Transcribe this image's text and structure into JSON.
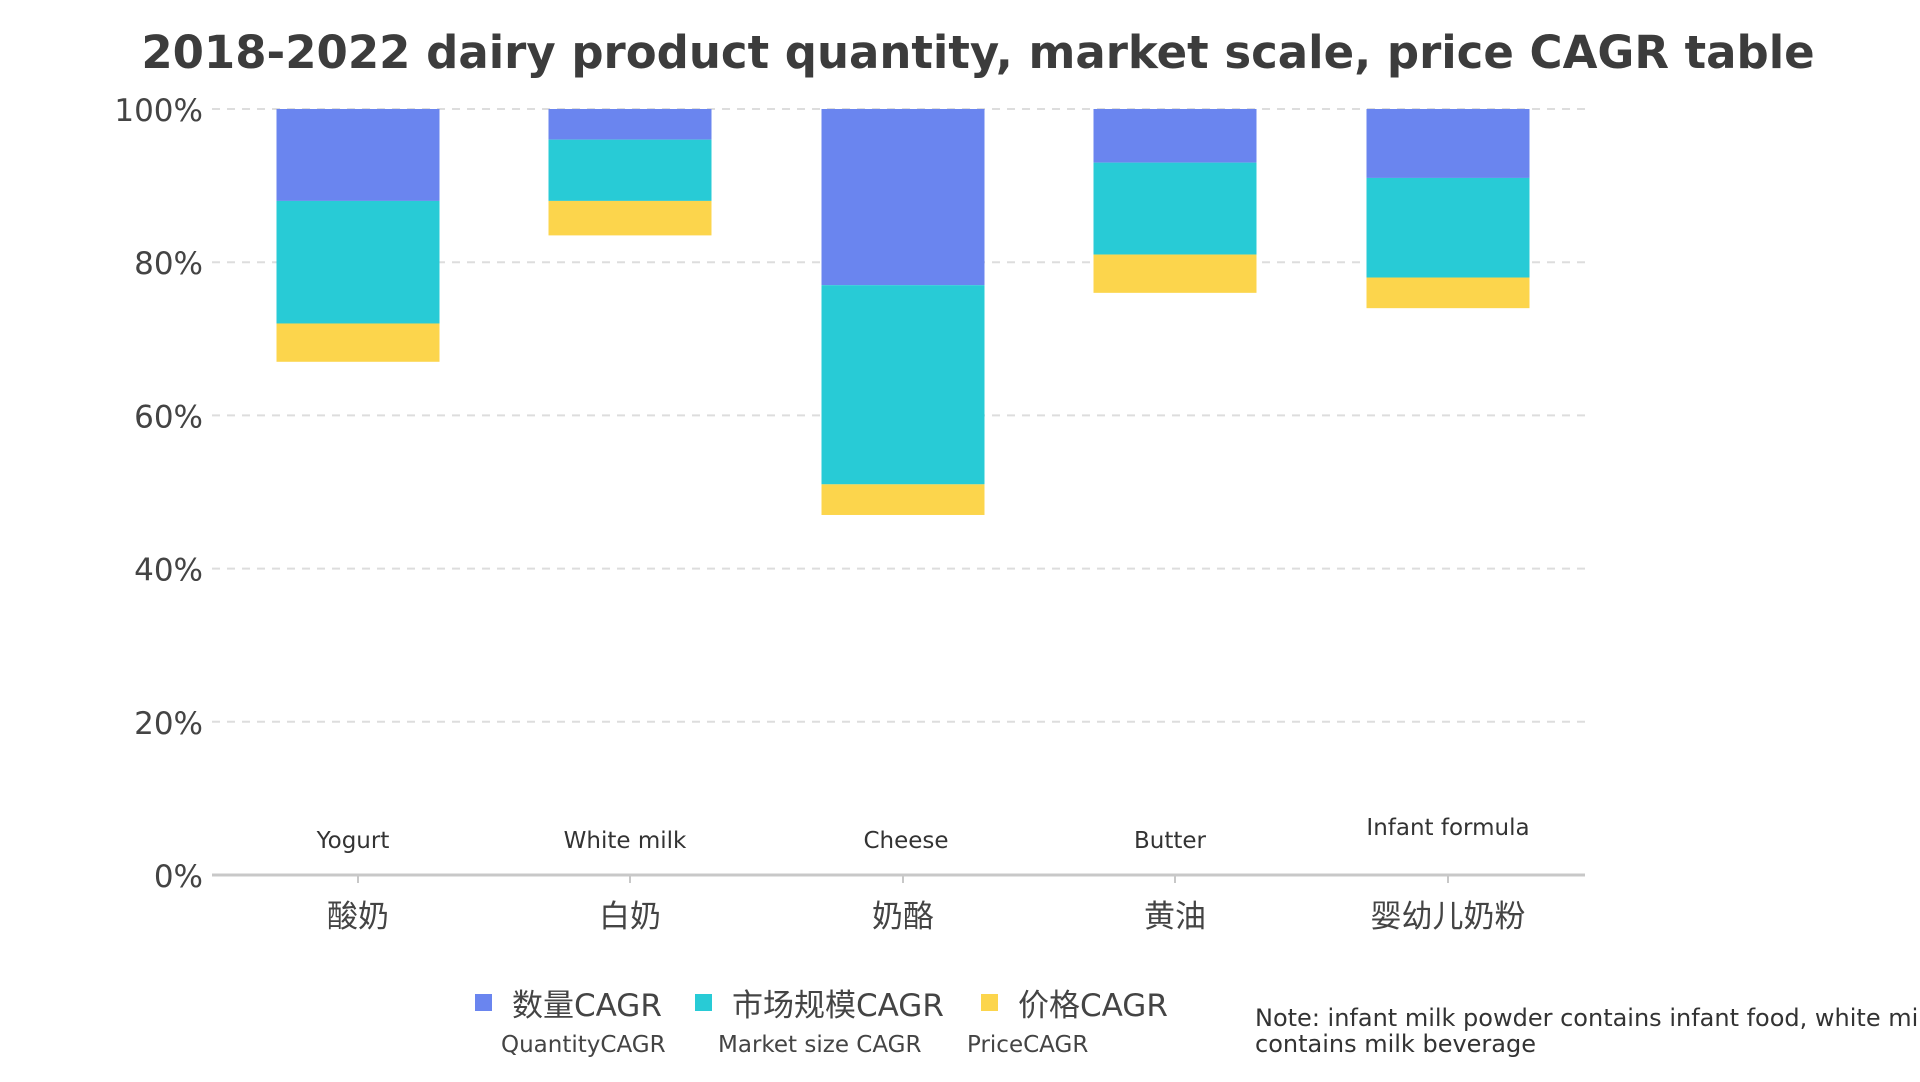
{
  "title": "2018-2022 dairy product quantity, market scale, price CAGR table",
  "legend": [
    {
      "label": "数量CAGR",
      "sublabel": "QuantityCAGR",
      "color": "#6a85ef"
    },
    {
      "label": "市场规模CAGR",
      "sublabel": "Market size CAGR",
      "color": "#28cbd6"
    },
    {
      "label": "价格CAGR",
      "sublabel": "PriceCAGR",
      "color": "#fcd54c"
    }
  ],
  "note": {
    "line1": "Note: infant milk powder contains infant food, white milk",
    "line2": "contains milk beverage"
  },
  "chart_data": {
    "type": "bar",
    "stacked": true,
    "categories": [
      "酸奶",
      "白奶",
      "奶酪",
      "黄油",
      "婴幼儿奶粉"
    ],
    "category_sublabels": [
      "Yogurt",
      "White milk",
      "Cheese",
      "Butter",
      "Infant formula"
    ],
    "series": [
      {
        "name": "数量CAGR",
        "color": "#6a85ef",
        "from": [
          88,
          96,
          77,
          93,
          91
        ],
        "to": [
          100,
          100,
          100,
          100,
          100
        ]
      },
      {
        "name": "市场规模CAGR",
        "color": "#28cbd6",
        "from": [
          72,
          88,
          51,
          81,
          78
        ],
        "to": [
          88,
          96,
          77,
          93,
          91
        ]
      },
      {
        "name": "价格CAGR",
        "color": "#fcd54c",
        "from": [
          67,
          83.5,
          47,
          76,
          74
        ],
        "to": [
          72,
          88,
          51,
          81,
          78
        ]
      }
    ],
    "yticks": [
      "0%",
      "20%",
      "40%",
      "60%",
      "80%",
      "100%"
    ],
    "ylim": [
      0,
      100
    ],
    "grid": true
  }
}
